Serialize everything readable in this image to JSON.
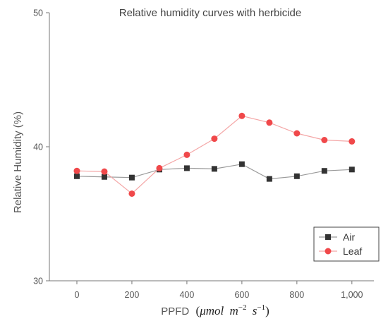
{
  "chart_data": {
    "type": "line",
    "title": "Relative humidity curves with herbicide",
    "xlabel": "PPFD",
    "xlabel_unit_parts": {
      "open": "(",
      "mu": "μ",
      "mol": "mol",
      "m": "m",
      "m_exp": "−2",
      "s": "s",
      "s_exp": "−1",
      "close": ")"
    },
    "ylabel": "Relative Humidity (%)",
    "x": [
      0,
      100,
      200,
      300,
      400,
      500,
      600,
      700,
      800,
      900,
      1000
    ],
    "xticks": [
      {
        "value": 0,
        "label": "0"
      },
      {
        "value": 200,
        "label": "200"
      },
      {
        "value": 400,
        "label": "400"
      },
      {
        "value": 600,
        "label": "600"
      },
      {
        "value": 800,
        "label": "800"
      },
      {
        "value": 1000,
        "label": "1,000"
      }
    ],
    "yticks": [
      {
        "value": 30,
        "label": "30"
      },
      {
        "value": 40,
        "label": "40"
      },
      {
        "value": 50,
        "label": "50"
      }
    ],
    "xlim": [
      -100,
      1080
    ],
    "ylim": [
      30,
      50
    ],
    "grid": false,
    "legend_position": "bottom-right",
    "series": [
      {
        "name": "Air",
        "marker": "square",
        "line_color": "#9a9a9a",
        "marker_color": "#333333",
        "values": [
          37.8,
          37.75,
          37.7,
          38.3,
          38.4,
          38.35,
          38.7,
          37.6,
          37.8,
          38.2,
          38.3
        ]
      },
      {
        "name": "Leaf",
        "marker": "circle",
        "line_color": "#f4a6a6",
        "marker_color": "#f0484a",
        "values": [
          38.2,
          38.15,
          36.5,
          38.4,
          39.4,
          40.6,
          42.3,
          41.8,
          41.0,
          40.5,
          40.4
        ]
      }
    ]
  }
}
